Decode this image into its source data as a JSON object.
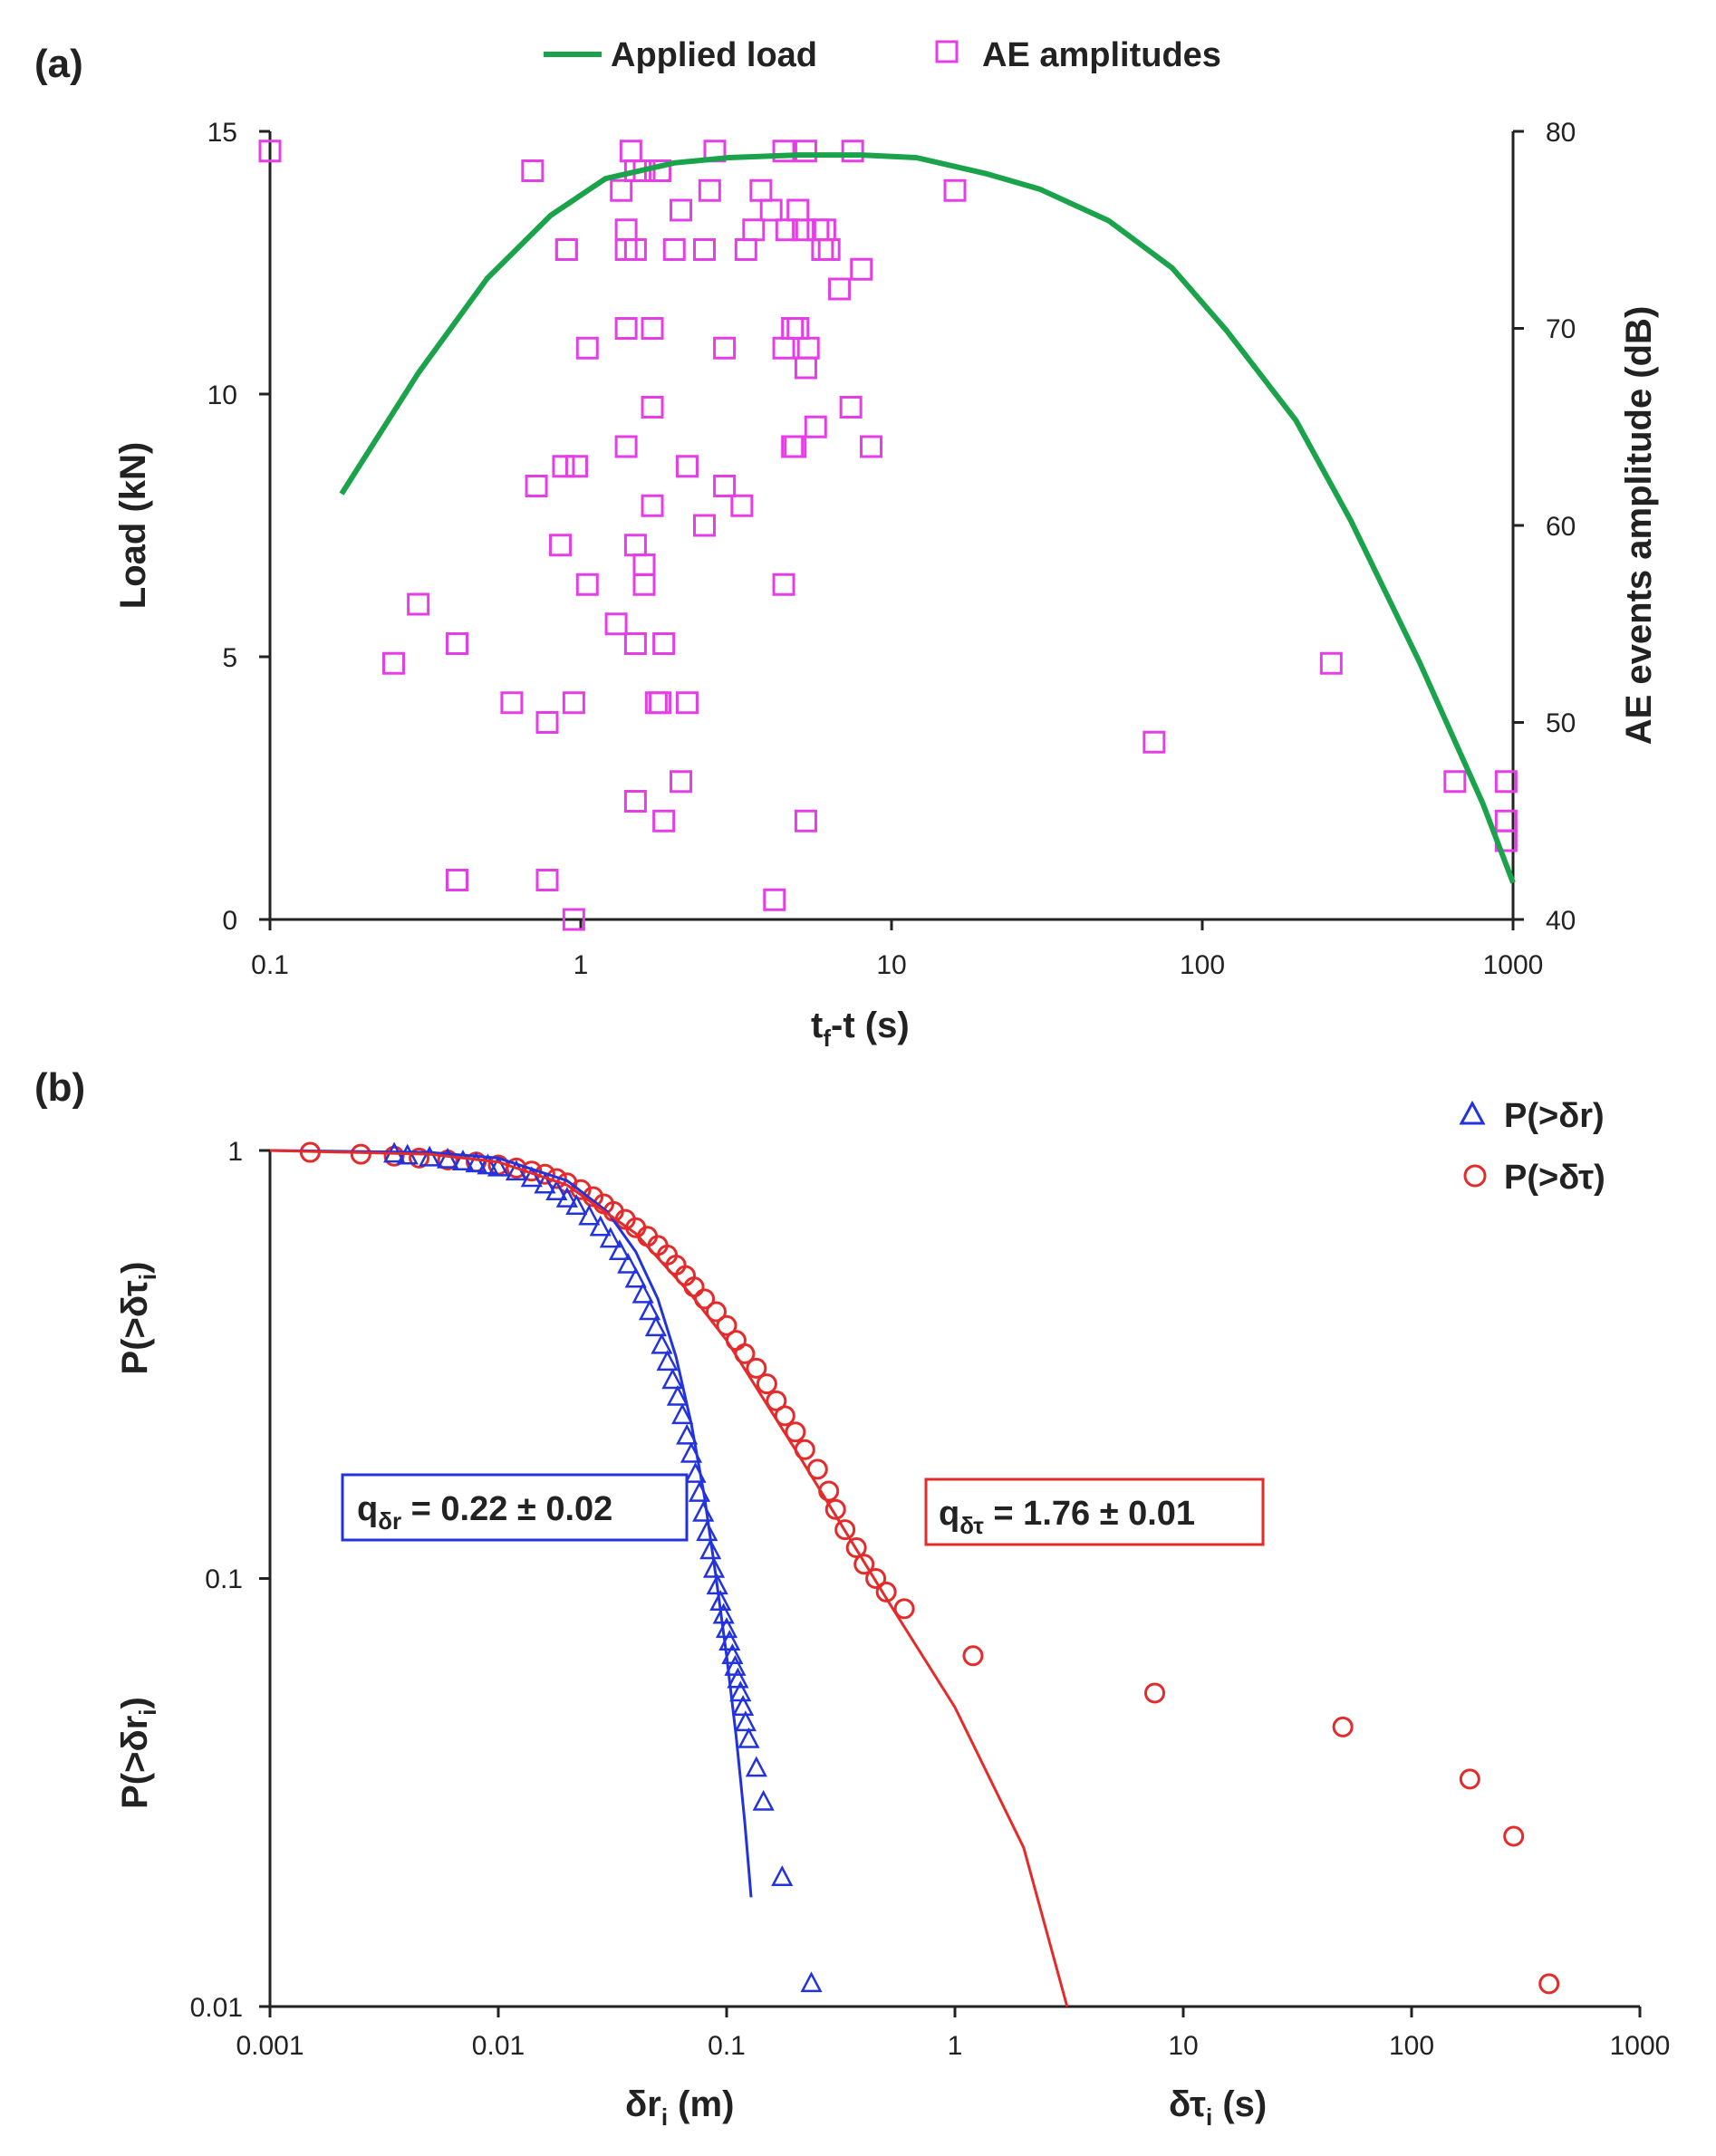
{
  "chart_data": [
    {
      "id": "a",
      "type": "scatter",
      "panel_label": "(a)",
      "title": "",
      "xlabel": "tf-t (s)",
      "xlabel_main": "t",
      "xlabel_sub": "f",
      "xlabel_rest": "-t (s)",
      "ylabel": "Load (kN)",
      "y2label": "AE events amplitude (dB)",
      "xscale": "log",
      "xlim": [
        0.1,
        1000
      ],
      "ylim": [
        0,
        15
      ],
      "y2lim": [
        40,
        80
      ],
      "grid": false,
      "legend_position": "top-center",
      "x_ticks": [
        "0.1",
        "1",
        "10",
        "100",
        "1000"
      ],
      "y_ticks": [
        "0",
        "5",
        "10",
        "15"
      ],
      "y2_ticks": [
        "40",
        "50",
        "60",
        "70",
        "80"
      ],
      "colors": {
        "load": "#1aa34a",
        "ae": "#e63ee6"
      },
      "series": [
        {
          "name": "Applied load",
          "axis": "left",
          "style": "line",
          "x": [
            0.17,
            0.3,
            0.5,
            0.8,
            1.2,
            2,
            3,
            5,
            8,
            12,
            20,
            30,
            50,
            80,
            120,
            200,
            300,
            500,
            800,
            1000
          ],
          "y": [
            8.1,
            10.4,
            12.2,
            13.4,
            14.1,
            14.4,
            14.5,
            14.55,
            14.55,
            14.5,
            14.2,
            13.9,
            13.3,
            12.4,
            11.2,
            9.5,
            7.6,
            4.9,
            2.2,
            0.7
          ]
        },
        {
          "name": "AE amplitudes",
          "axis": "right",
          "style": "marker",
          "x": [
            0.1,
            0.7,
            0.9,
            1.35,
            1.45,
            1.5,
            1.6,
            1.8,
            2.7,
            4.5,
            5.3,
            7.5,
            16,
            1.4,
            2.1,
            2.6,
            3.8,
            4.1,
            3.6,
            4.6,
            5.0,
            5.2,
            5.8,
            6.1,
            1.4,
            2.0,
            2.5,
            3.4,
            6.0,
            0.9,
            1.5,
            6.3,
            8.0,
            6.8,
            1.4,
            1.7,
            2.9,
            4.5,
            5.4,
            4.8,
            5.0,
            5.3,
            1.05,
            1.7,
            5.7,
            7.4,
            4.8,
            4.9,
            1.4,
            8.6,
            0.72,
            0.88,
            0.97,
            1.7,
            2.2,
            2.5,
            2.9,
            3.3,
            0.86,
            1.5,
            1.6,
            1.05,
            1.6,
            4.5,
            0.3,
            1.3,
            0.4,
            1.5,
            1.85,
            0.25,
            0.6,
            0.95,
            1.75,
            1.8,
            2.2,
            0.78,
            70,
            260,
            650,
            950,
            2.1,
            1.5,
            1.85,
            5.3,
            950,
            950,
            0.4,
            0.78,
            4.2,
            0.95
          ],
          "y": [
            79,
            78,
            74,
            77,
            79,
            78,
            78,
            78,
            79,
            79,
            79,
            79,
            77,
            75,
            76,
            77,
            77,
            76,
            75,
            75,
            76,
            75,
            75,
            75,
            74,
            74,
            74,
            74,
            74,
            74,
            74,
            74,
            73,
            72,
            70,
            70,
            69,
            69,
            69,
            70,
            70,
            68,
            69,
            66,
            65,
            66,
            64,
            64,
            64,
            64,
            62,
            63,
            63,
            61,
            63,
            60,
            62,
            61,
            59,
            59,
            57,
            57,
            58,
            57,
            56,
            55,
            54,
            54,
            54,
            53,
            51,
            51,
            51,
            51,
            51,
            50,
            49,
            53,
            47,
            47,
            47,
            46,
            45,
            45,
            45,
            44,
            42,
            42,
            41,
            40
          ]
        }
      ]
    },
    {
      "id": "b",
      "type": "scatter",
      "panel_label": "(b)",
      "title": "",
      "xlabel_left": "δri (m)",
      "xlabel_left_main": "δr",
      "xlabel_left_sub": "i",
      "xlabel_left_rest": " (m)",
      "xlabel_right": "δτi (s)",
      "xlabel_right_main": "δτ",
      "xlabel_right_sub": "i",
      "xlabel_right_rest": " (s)",
      "ylabel": "P(>δri)",
      "ylabel_main": "P(>δr",
      "ylabel_sub": "i",
      "ylabel_rest": ")",
      "ylabel2": "P(>δτi)",
      "ylabel2_main": "P(>δτ",
      "ylabel2_sub": "i",
      "ylabel2_rest": ")",
      "xscale": "log",
      "yscale": "log",
      "xlim": [
        0.001,
        1000
      ],
      "ylim": [
        0.01,
        1
      ],
      "grid": false,
      "legend_position": "top-right",
      "x_ticks": [
        "0.001",
        "0.01",
        "0.1",
        "1",
        "10",
        "100",
        "1000"
      ],
      "y_ticks": [
        "0.01",
        "0.1",
        "1"
      ],
      "colors": {
        "r": "#2233dd",
        "tau": "#e52a2a"
      },
      "annotations": [
        {
          "series": "r",
          "text_main": "q",
          "text_sub": "δr",
          "text_rest": " = 0.22 ± 0.02"
        },
        {
          "series": "tau",
          "text_main": "q",
          "text_sub": "δτ",
          "text_rest": " = 1.76 ± 0.01"
        }
      ],
      "series": [
        {
          "name": "P(>δr)",
          "key": "r",
          "marker": "triangle",
          "x": [
            0.0035,
            0.004,
            0.005,
            0.006,
            0.007,
            0.008,
            0.009,
            0.01,
            0.012,
            0.014,
            0.016,
            0.018,
            0.02,
            0.022,
            0.025,
            0.028,
            0.031,
            0.034,
            0.037,
            0.04,
            0.043,
            0.046,
            0.049,
            0.052,
            0.055,
            0.058,
            0.061,
            0.064,
            0.067,
            0.07,
            0.073,
            0.076,
            0.079,
            0.082,
            0.085,
            0.088,
            0.091,
            0.094,
            0.097,
            0.1,
            0.103,
            0.106,
            0.109,
            0.112,
            0.115,
            0.118,
            0.121,
            0.125,
            0.135,
            0.145,
            0.175,
            0.235
          ],
          "y": [
            0.98,
            0.97,
            0.96,
            0.95,
            0.94,
            0.93,
            0.92,
            0.91,
            0.89,
            0.86,
            0.83,
            0.8,
            0.77,
            0.74,
            0.7,
            0.66,
            0.62,
            0.58,
            0.54,
            0.5,
            0.46,
            0.42,
            0.385,
            0.35,
            0.32,
            0.29,
            0.265,
            0.24,
            0.215,
            0.195,
            0.175,
            0.158,
            0.142,
            0.128,
            0.116,
            0.105,
            0.096,
            0.088,
            0.082,
            0.076,
            0.071,
            0.066,
            0.062,
            0.058,
            0.054,
            0.05,
            0.046,
            0.042,
            0.036,
            0.03,
            0.02,
            0.0113
          ]
        },
        {
          "name": "P(>δτ)",
          "key": "tau",
          "marker": "circle",
          "x": [
            0.0015,
            0.0025,
            0.0035,
            0.0045,
            0.006,
            0.008,
            0.01,
            0.012,
            0.014,
            0.016,
            0.018,
            0.02,
            0.023,
            0.026,
            0.029,
            0.032,
            0.036,
            0.04,
            0.045,
            0.05,
            0.055,
            0.06,
            0.066,
            0.072,
            0.08,
            0.09,
            0.1,
            0.11,
            0.12,
            0.135,
            0.15,
            0.165,
            0.18,
            0.2,
            0.22,
            0.25,
            0.28,
            0.3,
            0.33,
            0.37,
            0.4,
            0.45,
            0.5,
            0.6,
            1.2,
            7.5,
            50,
            180,
            280,
            400
          ],
          "y": [
            0.99,
            0.98,
            0.97,
            0.96,
            0.95,
            0.94,
            0.925,
            0.91,
            0.895,
            0.88,
            0.86,
            0.84,
            0.81,
            0.78,
            0.75,
            0.72,
            0.69,
            0.66,
            0.63,
            0.6,
            0.57,
            0.54,
            0.51,
            0.48,
            0.45,
            0.42,
            0.39,
            0.36,
            0.335,
            0.31,
            0.285,
            0.26,
            0.24,
            0.22,
            0.2,
            0.18,
            0.16,
            0.145,
            0.13,
            0.118,
            0.108,
            0.1,
            0.093,
            0.085,
            0.066,
            0.054,
            0.045,
            0.034,
            0.025,
            0.0113
          ]
        },
        {
          "name": "fit r",
          "key": "fit_r",
          "style": "line",
          "x": [
            0.001,
            0.005,
            0.01,
            0.02,
            0.03,
            0.04,
            0.05,
            0.06,
            0.07,
            0.08,
            0.09,
            0.1,
            0.105,
            0.11,
            0.115,
            0.12,
            0.125,
            0.128
          ],
          "y": [
            1.0,
            0.99,
            0.96,
            0.85,
            0.72,
            0.58,
            0.45,
            0.33,
            0.23,
            0.155,
            0.1,
            0.066,
            0.053,
            0.043,
            0.034,
            0.027,
            0.021,
            0.018
          ]
        },
        {
          "name": "fit tau",
          "key": "fit_tau",
          "style": "line",
          "x": [
            0.001,
            0.005,
            0.01,
            0.02,
            0.04,
            0.07,
            0.1,
            0.2,
            0.5,
            1,
            2,
            3.1
          ],
          "y": [
            1.0,
            0.98,
            0.94,
            0.83,
            0.64,
            0.46,
            0.36,
            0.2,
            0.09,
            0.05,
            0.0235,
            0.01
          ]
        }
      ]
    }
  ]
}
